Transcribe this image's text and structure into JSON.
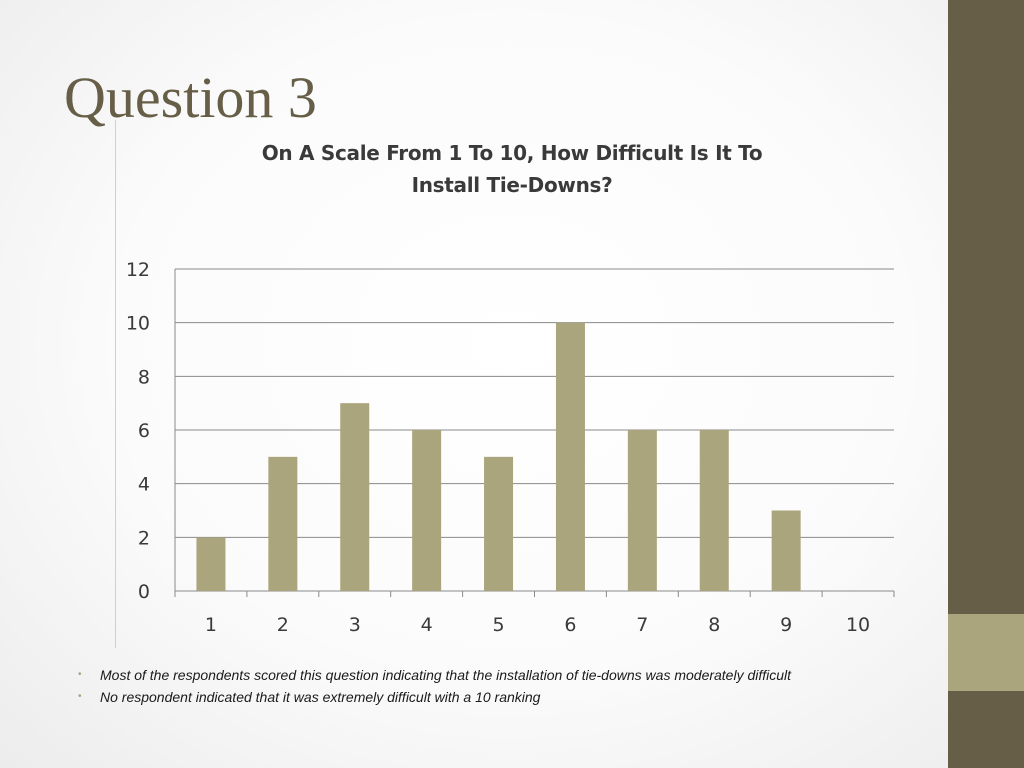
{
  "slide": {
    "title": "Question 3",
    "bullets": [
      "Most of the respondents scored this question indicating that the installation of tie-downs was moderately difficult",
      "No respondent indicated that it was extremely difficult with a 10 ranking"
    ]
  },
  "colors": {
    "sidebar": "#675e48",
    "sidebar_accent": "#aaa57d",
    "bar": "#aaa57d",
    "title": "#675e48"
  },
  "chart_data": {
    "type": "bar",
    "title_lines": [
      "On A Scale From 1 To 10, How Difficult Is It To",
      "Install Tie-Downs?"
    ],
    "categories": [
      "1",
      "2",
      "3",
      "4",
      "5",
      "6",
      "7",
      "8",
      "9",
      "10"
    ],
    "values": [
      2,
      5,
      7,
      6,
      5,
      10,
      6,
      6,
      3,
      0
    ],
    "ylim": [
      0,
      12
    ],
    "yticks": [
      0,
      2,
      4,
      6,
      8,
      10,
      12
    ],
    "grid": true,
    "legend": "none",
    "xlabel": "",
    "ylabel": ""
  }
}
